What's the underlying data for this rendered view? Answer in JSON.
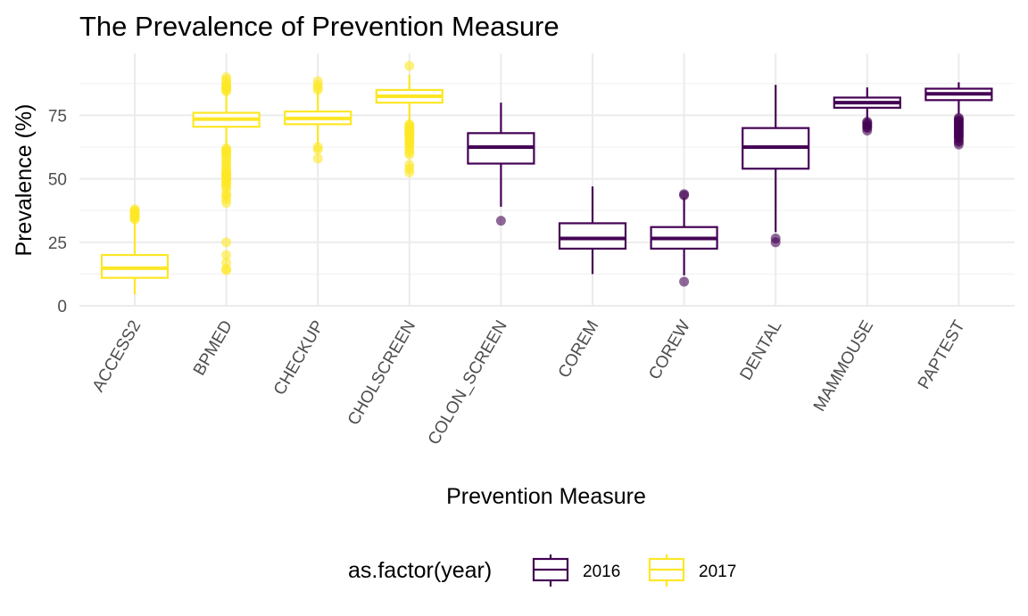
{
  "chart_data": {
    "type": "boxplot",
    "title": "The Prevalence of Prevention Measure",
    "xlabel": "Prevention Measure",
    "ylabel": "Prevalence (%)",
    "ylim": [
      0,
      97
    ],
    "yticks": [
      0,
      25,
      50,
      75
    ],
    "grid": true,
    "legend": {
      "title": "as.factor(year)",
      "position": "bottom"
    },
    "series": [
      {
        "name": "2016",
        "color": "#440154"
      },
      {
        "name": "2017",
        "color": "#FDE725"
      }
    ],
    "categories": [
      "ACCESS2",
      "BPMED",
      "CHECKUP",
      "CHOLSCREEN",
      "COLON_SCREEN",
      "COREM",
      "COREW",
      "DENTAL",
      "MAMMOUSE",
      "PAPTEST"
    ],
    "boxes": [
      {
        "category": "ACCESS2",
        "series": "2017",
        "min": 4.5,
        "q1": 11,
        "median": 14.8,
        "q3": 20,
        "max": 33,
        "outliers": [
          34,
          34.5,
          35,
          35.5,
          36,
          36.5,
          37,
          37.5,
          38
        ]
      },
      {
        "category": "BPMED",
        "series": "2017",
        "min": 63,
        "q1": 70.5,
        "median": 73.5,
        "q3": 76,
        "max": 84,
        "outliers": [
          14,
          14.5,
          17,
          20,
          25,
          40.5,
          42,
          43.5,
          44,
          46,
          47,
          48,
          48.5,
          49,
          50,
          50.5,
          51,
          51.5,
          52,
          52.5,
          53,
          54,
          55,
          56,
          57,
          58,
          59,
          60,
          60.5,
          61,
          61.5,
          62,
          84.5,
          85,
          85.5,
          86,
          86.5,
          87,
          88,
          89,
          90
        ]
      },
      {
        "category": "CHECKUP",
        "series": "2017",
        "min": 63.5,
        "q1": 71.5,
        "median": 73.8,
        "q3": 76.5,
        "max": 84.5,
        "outliers": [
          58,
          61.5,
          62.5,
          85,
          86,
          87,
          88.5
        ]
      },
      {
        "category": "CHOLSCREEN",
        "series": "2017",
        "min": 72.5,
        "q1": 80,
        "median": 82.5,
        "q3": 85,
        "max": 91,
        "outliers": [
          52.5,
          54,
          55.5,
          59.5,
          60.5,
          61.5,
          62.5,
          63.5,
          64,
          65,
          65.5,
          66,
          67,
          67.5,
          68,
          68.5,
          69,
          69.5,
          70,
          70.5,
          71,
          71.5,
          94.5
        ]
      },
      {
        "category": "COLON_SCREEN",
        "series": "2016",
        "min": 39,
        "q1": 56,
        "median": 62.5,
        "q3": 68,
        "max": 80,
        "outliers": [
          33.5
        ]
      },
      {
        "category": "COREM",
        "series": "2016",
        "min": 12.5,
        "q1": 22.5,
        "median": 26.5,
        "q3": 32.5,
        "max": 47,
        "outliers": []
      },
      {
        "category": "COREW",
        "series": "2016",
        "min": 12,
        "q1": 22.5,
        "median": 26.5,
        "q3": 31,
        "max": 42.5,
        "outliers": [
          9.5,
          43.5,
          44
        ]
      },
      {
        "category": "DENTAL",
        "series": "2016",
        "min": 29,
        "q1": 54,
        "median": 62.5,
        "q3": 70,
        "max": 87,
        "outliers": [
          25,
          26.5
        ]
      },
      {
        "category": "MAMMOUSE",
        "series": "2016",
        "min": 73,
        "q1": 78,
        "median": 80,
        "q3": 82,
        "max": 86,
        "outliers": [
          69,
          70,
          70.5,
          71,
          71.5,
          72,
          72.5
        ]
      },
      {
        "category": "PAPTEST",
        "series": "2016",
        "min": 75.5,
        "q1": 81,
        "median": 83.5,
        "q3": 85.5,
        "max": 88,
        "outliers": [
          63.5,
          64.5,
          65,
          66,
          66.5,
          67,
          67.5,
          68,
          68.5,
          69,
          69.5,
          70,
          70.5,
          71,
          71.5,
          72,
          72.5,
          73,
          73.5,
          74
        ]
      }
    ]
  }
}
